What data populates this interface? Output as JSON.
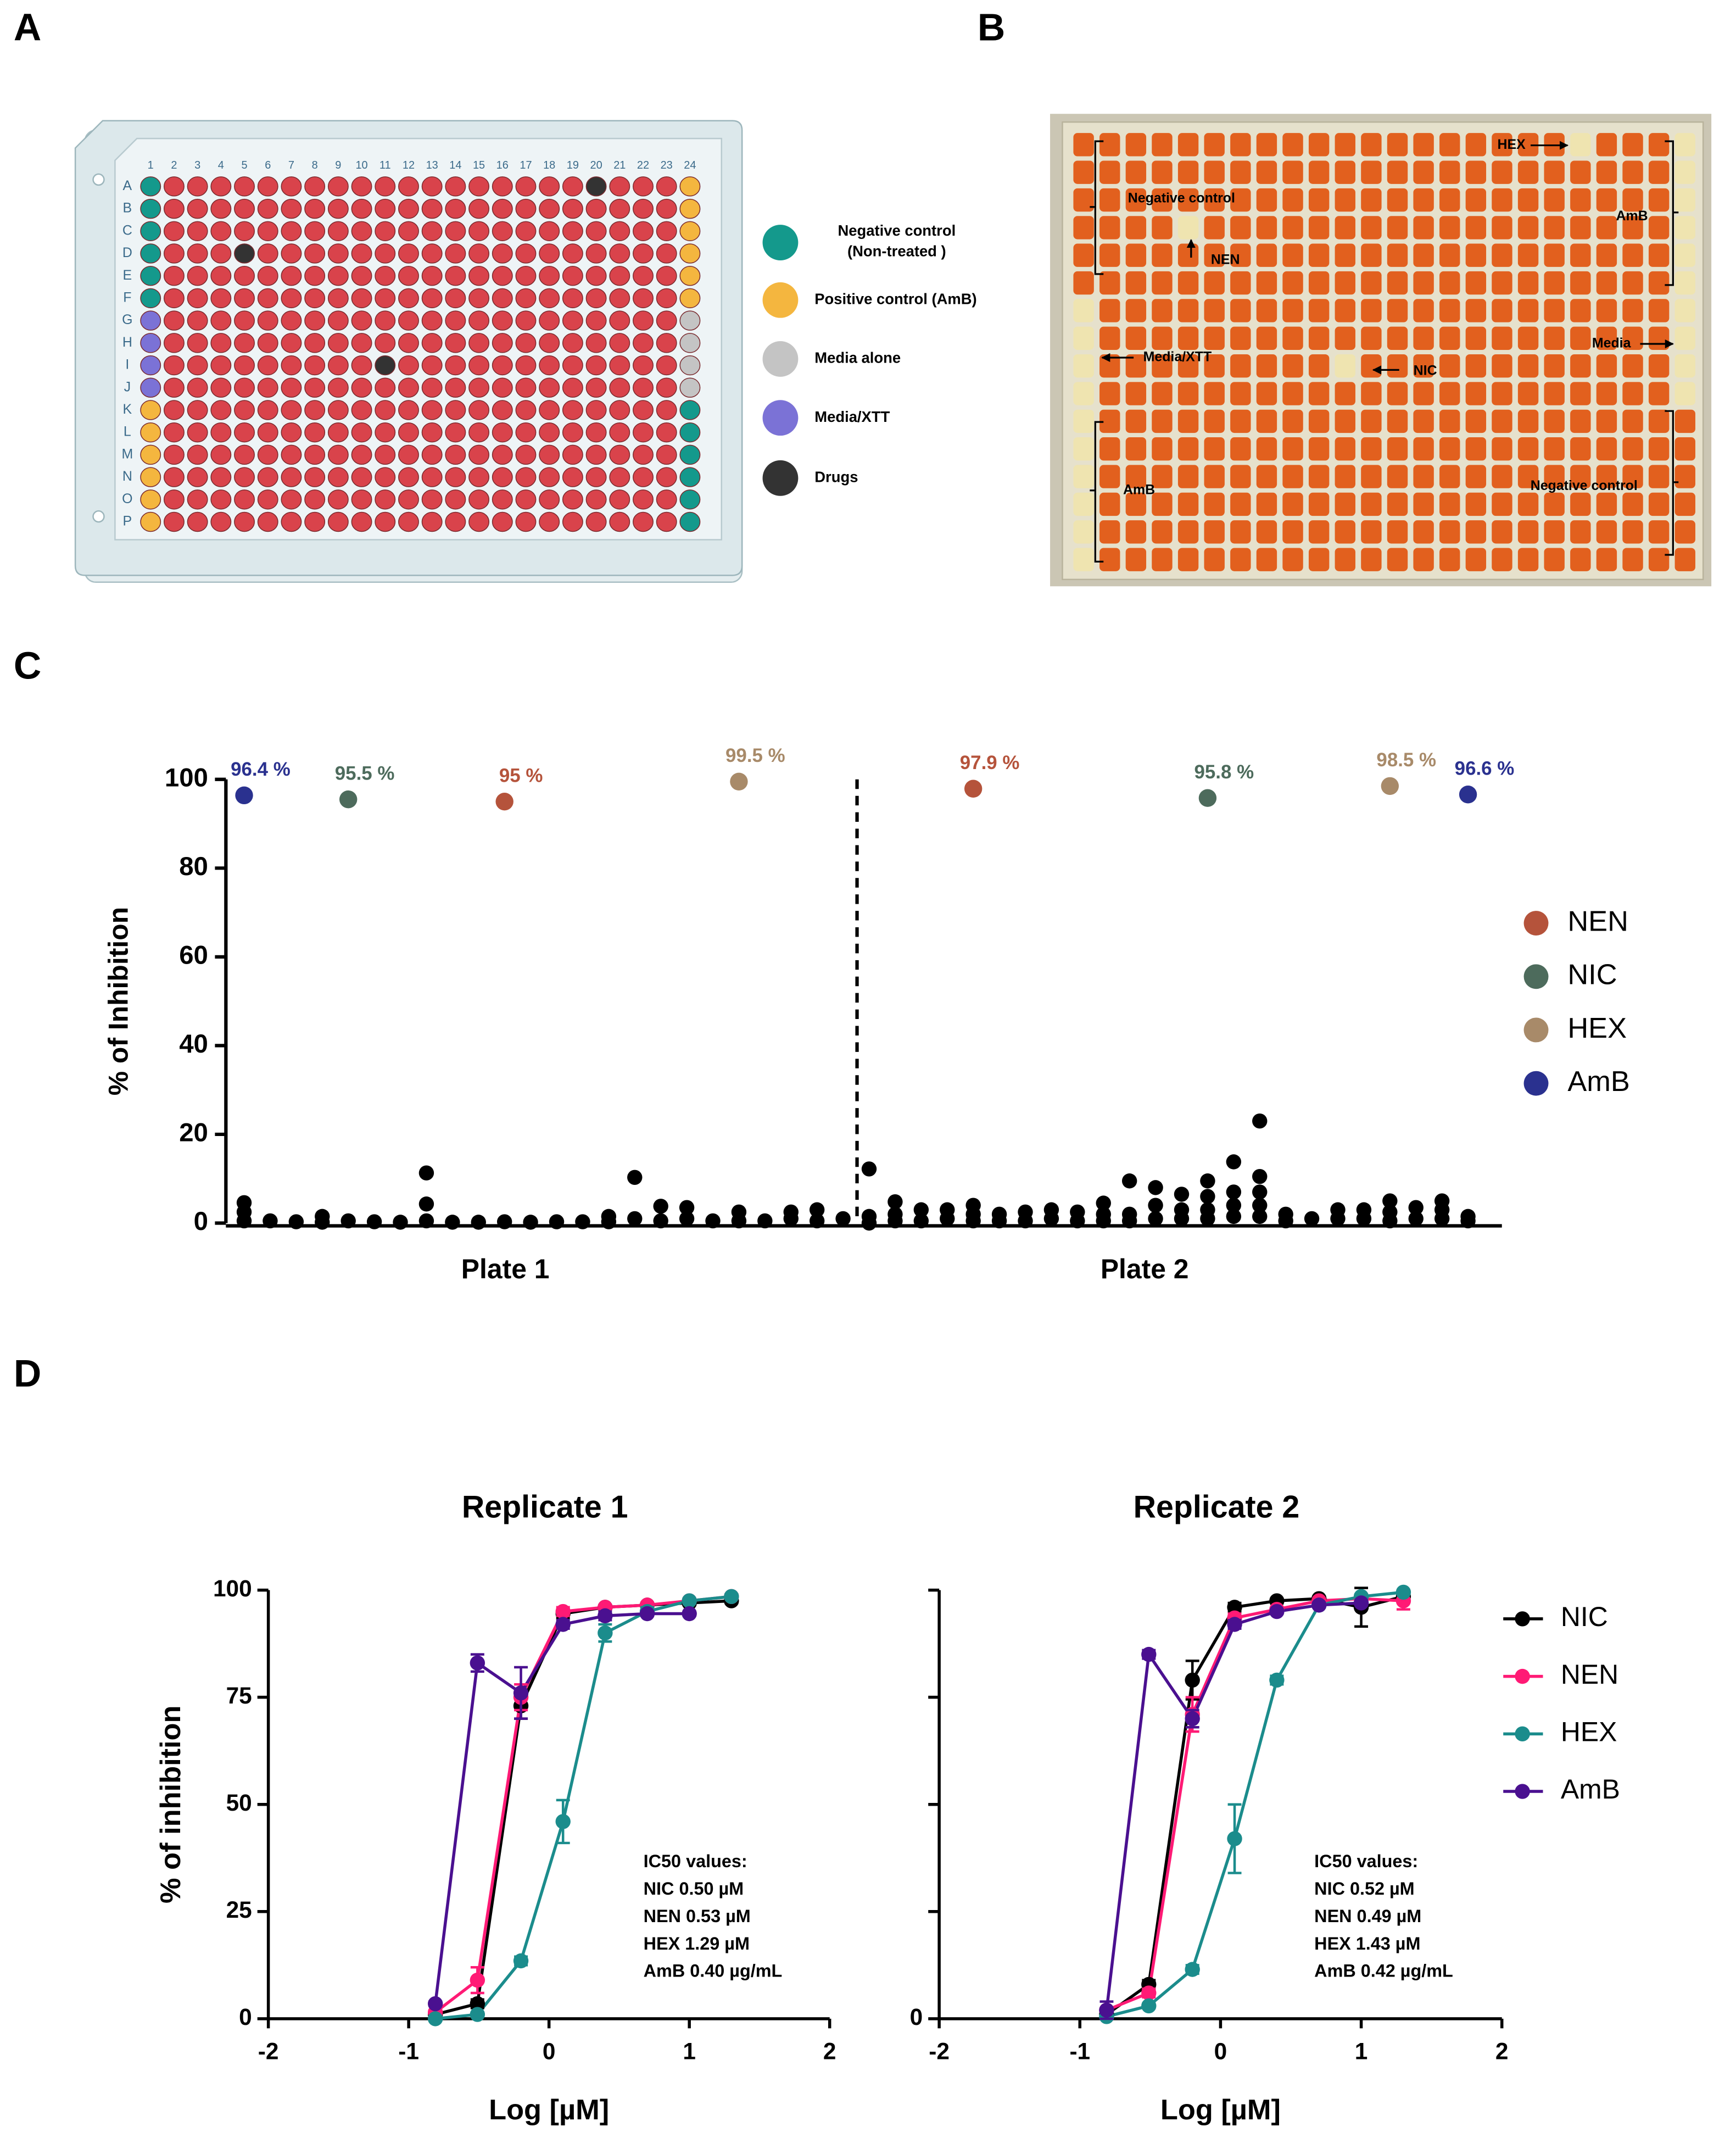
{
  "panels": [
    "A",
    "B",
    "C",
    "D"
  ],
  "plate": {
    "rows": [
      "A",
      "B",
      "C",
      "D",
      "E",
      "F",
      "G",
      "H",
      "I",
      "J",
      "K",
      "L",
      "M",
      "N",
      "O",
      "P"
    ],
    "columns": [
      1,
      2,
      3,
      4,
      5,
      6,
      7,
      8,
      9,
      10,
      11,
      12,
      13,
      14,
      15,
      16,
      17,
      18,
      19,
      20,
      21,
      22,
      23,
      24
    ],
    "legend": [
      {
        "label": [
          "Negative control",
          "(Non-treated )"
        ],
        "color": "#14998c"
      },
      {
        "label": [
          "Positive control (AmB)"
        ],
        "color": "#f4b63f"
      },
      {
        "label": [
          "Media alone"
        ],
        "color": "#c4c4c4"
      },
      {
        "label": [
          "Media/XTT"
        ],
        "color": "#7b72d6"
      },
      {
        "label": [
          "Drugs"
        ],
        "color": "#333333"
      }
    ]
  },
  "photo": {
    "labels": [
      "HEX",
      "Negative control",
      "NEN",
      "AmB",
      "Media",
      "Media/XTT",
      "NIC",
      "AmB",
      "Negative control"
    ]
  },
  "chart_data": [
    {
      "type": "scatter",
      "ylabel": "% of Inhibition",
      "categories": [
        "Plate 1",
        "Plate 2"
      ],
      "xlim": [
        0.3,
        49.3
      ],
      "ylim": [
        0,
        100
      ],
      "yticks": [
        0,
        20,
        40,
        60,
        80,
        100
      ],
      "legend": "right",
      "series": [
        {
          "color": "#000000",
          "x": [
            1,
            1,
            1,
            2,
            3,
            4,
            4,
            5,
            6,
            7,
            8,
            8,
            8,
            9,
            10,
            11,
            12,
            13,
            14,
            15,
            15,
            16,
            16,
            17,
            17,
            18,
            18,
            19,
            20,
            20,
            21,
            22,
            22,
            23,
            23,
            24,
            25,
            25,
            25,
            26,
            26,
            26,
            27,
            27,
            28,
            28,
            29,
            29,
            29,
            30,
            30,
            31,
            31,
            32,
            32,
            33,
            33,
            34,
            34,
            34,
            35,
            35,
            35,
            36,
            36,
            36,
            37,
            37,
            37,
            38,
            38,
            38,
            38,
            39,
            39,
            39,
            39,
            40,
            40,
            40,
            40,
            40,
            41,
            41,
            42,
            43,
            43,
            44,
            44,
            45,
            45,
            45,
            46,
            46,
            47,
            47,
            47,
            48,
            48
          ],
          "values": [
            4.6,
            2.5,
            0.5,
            0.5,
            0.3,
            1.5,
            0.2,
            0.5,
            0.3,
            0.2,
            11.3,
            4.3,
            0.5,
            0.2,
            0.2,
            0.3,
            0.2,
            0.3,
            0.3,
            1.5,
            0.3,
            10.3,
            1,
            3.8,
            0.5,
            3.5,
            1,
            0.5,
            2.5,
            0.5,
            0.5,
            2.5,
            1,
            3,
            0.5,
            1,
            12.2,
            1.5,
            0,
            4.8,
            2,
            0.5,
            3,
            0.5,
            3,
            1,
            4,
            2,
            0.5,
            2,
            0.5,
            2.5,
            0.5,
            3,
            1,
            2.5,
            0.5,
            4.5,
            2,
            0.5,
            9.5,
            2,
            0.5,
            8,
            4,
            1,
            6.5,
            3,
            1,
            9.5,
            6,
            3,
            1,
            13.8,
            7,
            4,
            1.5,
            23,
            10.5,
            7,
            4,
            1.5,
            2,
            0.5,
            1,
            3,
            1,
            3,
            1,
            5,
            2.5,
            0.5,
            3.5,
            1,
            5,
            3,
            1,
            1.5,
            0.5
          ]
        },
        {
          "name": "NEN",
          "color": "#b5533b",
          "x": [
            11,
            29
          ],
          "values": [
            95,
            97.9
          ],
          "value_labels": [
            "95 %",
            "97.9 %"
          ]
        },
        {
          "name": "NIC",
          "color": "#4d6b5c",
          "x": [
            5,
            38
          ],
          "values": [
            95.5,
            95.8
          ],
          "value_labels": [
            "95.5 %",
            "95.8 %"
          ]
        },
        {
          "name": "HEX",
          "color": "#a88a69",
          "x": [
            20,
            45
          ],
          "values": [
            99.5,
            98.5
          ],
          "value_labels": [
            "99.5 %",
            "98.5 %"
          ]
        },
        {
          "name": "AmB",
          "color": "#2a318f",
          "x": [
            1,
            48
          ],
          "values": [
            96.4,
            96.6
          ],
          "value_labels": [
            "96.4 %",
            "96.6 %"
          ]
        }
      ]
    },
    {
      "type": "line",
      "title": "Replicate 1",
      "xlabel": "Log [µM]",
      "ylabel": "% of inhibition",
      "xlim": [
        -2,
        2
      ],
      "xticks": [
        -2,
        -1,
        0,
        1,
        2
      ],
      "ylim": [
        0,
        100
      ],
      "yticks": [
        0,
        25,
        50,
        75,
        100
      ],
      "annotation": [
        "IC50 values:",
        "NIC 0.50 µM",
        "NEN 0.53 µM",
        "HEX 1.29 µM",
        "AmB 0.40 µg/mL"
      ],
      "series": [
        {
          "name": "NIC",
          "color": "#000000",
          "x": [
            -0.81,
            -0.51,
            -0.2,
            0.1,
            0.4,
            0.7,
            1,
            1.3
          ],
          "values": [
            1,
            3.5,
            73,
            94.5,
            96,
            96.5,
            97,
            97.5
          ],
          "errors": [
            0.5,
            1,
            3,
            1,
            0.5,
            0.5,
            0.5,
            0.5
          ]
        },
        {
          "name": "NEN",
          "color": "#ff1a75",
          "x": [
            -0.81,
            -0.51,
            -0.2,
            0.1,
            0.4,
            0.7,
            1,
            1.3
          ],
          "values": [
            1.5,
            9,
            75,
            95,
            96,
            96.5,
            97.5,
            98.5
          ],
          "errors": [
            0.5,
            3,
            3,
            1,
            0.5,
            0.5,
            0.5,
            0.5
          ]
        },
        {
          "name": "HEX",
          "color": "#1b8c8c",
          "x": [
            -0.81,
            -0.51,
            -0.2,
            0.1,
            0.4,
            0.7,
            1,
            1.3
          ],
          "values": [
            0,
            1,
            13.5,
            46,
            90,
            95,
            97.5,
            98.5
          ],
          "errors": [
            0.5,
            0.5,
            1,
            5,
            2,
            1,
            0.5,
            0.5
          ]
        },
        {
          "name": "AmB",
          "color": "#4a1090",
          "x": [
            -0.81,
            -0.51,
            -0.2,
            0.1,
            0.4,
            0.7,
            1
          ],
          "values": [
            3.5,
            83,
            76,
            92,
            94,
            94.5,
            94.5
          ],
          "errors": [
            0.5,
            2,
            6,
            1,
            1,
            0.5,
            0.5
          ]
        }
      ]
    },
    {
      "type": "line",
      "title": "Replicate 2",
      "xlabel": "Log [µM]",
      "xlim": [
        -2,
        2
      ],
      "xticks": [
        -2,
        -1,
        0,
        1,
        2
      ],
      "ylim": [
        0,
        100
      ],
      "yticks": [
        0
      ],
      "ytick_marks": [
        25,
        50,
        75,
        100
      ],
      "legend": "right",
      "annotation": [
        "IC50 values:",
        "NIC 0.52 µM",
        "NEN 0.49 µM",
        "HEX 1.43 µM",
        "AmB 0.42 µg/mL"
      ],
      "series": [
        {
          "name": "NIC",
          "color": "#000000",
          "x": [
            -0.81,
            -0.51,
            -0.2,
            0.1,
            0.4,
            0.7,
            1,
            1.3
          ],
          "values": [
            1,
            8,
            79,
            96,
            97.5,
            98,
            96,
            98.5
          ],
          "errors": [
            0.5,
            1,
            4.5,
            1,
            0.5,
            0.5,
            4.5,
            1
          ]
        },
        {
          "name": "NEN",
          "color": "#ff1a75",
          "x": [
            -0.81,
            -0.51,
            -0.2,
            0.1,
            0.4,
            0.7,
            1,
            1.3
          ],
          "values": [
            2,
            6,
            71,
            93.5,
            95.5,
            97.5,
            98,
            97.5
          ],
          "errors": [
            0.5,
            1,
            4,
            1,
            0.5,
            0.5,
            0.5,
            2
          ]
        },
        {
          "name": "HEX",
          "color": "#1b8c8c",
          "x": [
            -0.81,
            -0.51,
            -0.2,
            0.1,
            0.4,
            0.7,
            1,
            1.3
          ],
          "values": [
            0.5,
            3,
            11.5,
            42,
            79,
            96.5,
            98.5,
            99.5
          ],
          "errors": [
            0.5,
            0.5,
            1,
            8,
            1,
            0.5,
            0.5,
            0.5
          ]
        },
        {
          "name": "AmB",
          "color": "#4a1090",
          "x": [
            -0.81,
            -0.51,
            -0.2,
            0.1,
            0.4,
            0.7,
            1
          ],
          "values": [
            2,
            85,
            70,
            92,
            95,
            96.5,
            97
          ],
          "errors": [
            2,
            1,
            2,
            1,
            0.5,
            0.5,
            0.5
          ]
        }
      ]
    }
  ]
}
